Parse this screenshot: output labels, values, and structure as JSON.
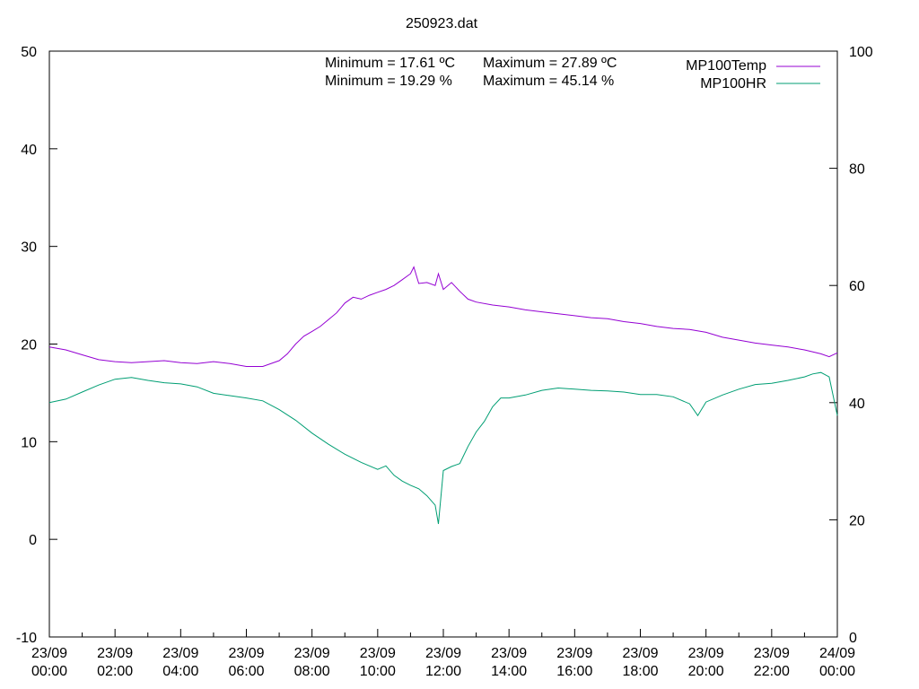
{
  "chart_data": {
    "type": "line",
    "title": "250923.dat",
    "xlabel": "",
    "ylabel": "",
    "y1lim": [
      -10,
      50
    ],
    "y2lim": [
      0,
      100
    ],
    "y1_ticks": [
      -10,
      0,
      10,
      20,
      30,
      40,
      50
    ],
    "y2_ticks": [
      0,
      20,
      40,
      60,
      80,
      100
    ],
    "x_range_hours": [
      0,
      24
    ],
    "x_ticks": [
      {
        "hour": 0,
        "date": "23/09",
        "time": "00:00"
      },
      {
        "hour": 2,
        "date": "23/09",
        "time": "02:00"
      },
      {
        "hour": 4,
        "date": "23/09",
        "time": "04:00"
      },
      {
        "hour": 6,
        "date": "23/09",
        "time": "06:00"
      },
      {
        "hour": 8,
        "date": "23/09",
        "time": "08:00"
      },
      {
        "hour": 10,
        "date": "23/09",
        "time": "10:00"
      },
      {
        "hour": 12,
        "date": "23/09",
        "time": "12:00"
      },
      {
        "hour": 14,
        "date": "23/09",
        "time": "14:00"
      },
      {
        "hour": 16,
        "date": "23/09",
        "time": "16:00"
      },
      {
        "hour": 18,
        "date": "23/09",
        "time": "18:00"
      },
      {
        "hour": 20,
        "date": "23/09",
        "time": "20:00"
      },
      {
        "hour": 22,
        "date": "23/09",
        "time": "22:00"
      },
      {
        "hour": 24,
        "date": "24/09",
        "time": "00:00"
      }
    ],
    "legend_position": "top-right",
    "annotations": {
      "temp_min": "Minimum = 17.61 ºC",
      "temp_max": "Maximum = 27.89 ºC",
      "hr_min": "Minimum = 19.29 %",
      "hr_max": "Maximum = 45.14 %"
    },
    "series": [
      {
        "name": "MP100Temp",
        "axis": "y1",
        "color": "#9400d3",
        "x": [
          0,
          0.5,
          1,
          1.5,
          2,
          2.5,
          3,
          3.5,
          4,
          4.5,
          5,
          5.5,
          6,
          6.5,
          7,
          7.25,
          7.5,
          7.75,
          8,
          8.25,
          8.5,
          8.75,
          9,
          9.25,
          9.5,
          9.75,
          10,
          10.25,
          10.5,
          10.75,
          11,
          11.1,
          11.25,
          11.5,
          11.75,
          11.85,
          12,
          12.25,
          12.5,
          12.75,
          13,
          13.5,
          14,
          14.5,
          15,
          15.5,
          16,
          16.5,
          17,
          17.5,
          18,
          18.5,
          19,
          19.5,
          20,
          20.5,
          21,
          21.5,
          22,
          22.5,
          23,
          23.5,
          23.75,
          24
        ],
        "y": [
          19.7,
          19.4,
          18.9,
          18.4,
          18.2,
          18.1,
          18.2,
          18.3,
          18.1,
          18.0,
          18.2,
          18.0,
          17.7,
          17.7,
          18.3,
          19.0,
          20.0,
          20.8,
          21.3,
          21.8,
          22.5,
          23.2,
          24.2,
          24.8,
          24.6,
          25.0,
          25.3,
          25.6,
          26.0,
          26.6,
          27.2,
          27.89,
          26.2,
          26.3,
          26.0,
          27.2,
          25.6,
          26.3,
          25.4,
          24.6,
          24.3,
          24.0,
          23.8,
          23.5,
          23.3,
          23.1,
          22.9,
          22.7,
          22.6,
          22.3,
          22.1,
          21.8,
          21.6,
          21.5,
          21.2,
          20.7,
          20.4,
          20.1,
          19.9,
          19.7,
          19.4,
          19.0,
          18.7,
          19.1
        ]
      },
      {
        "name": "MP100HR",
        "axis": "y2",
        "color": "#009e73",
        "x": [
          0,
          0.5,
          1,
          1.5,
          2,
          2.5,
          3,
          3.5,
          4,
          4.5,
          5,
          5.5,
          6,
          6.5,
          7,
          7.5,
          8,
          8.5,
          9,
          9.5,
          10,
          10.25,
          10.5,
          10.75,
          11,
          11.25,
          11.5,
          11.75,
          11.85,
          12,
          12.25,
          12.5,
          12.75,
          13,
          13.25,
          13.5,
          13.75,
          14,
          14.5,
          15,
          15.5,
          16,
          16.5,
          17,
          17.5,
          18,
          18.5,
          19,
          19.5,
          19.75,
          20,
          20.5,
          21,
          21.5,
          22,
          22.5,
          23,
          23.25,
          23.5,
          23.75,
          24
        ],
        "y": [
          40.0,
          40.6,
          41.8,
          43.0,
          44.0,
          44.3,
          43.8,
          43.4,
          43.2,
          42.7,
          41.6,
          41.2,
          40.8,
          40.3,
          38.8,
          37.0,
          34.8,
          32.9,
          31.2,
          29.8,
          28.6,
          29.2,
          27.6,
          26.6,
          25.9,
          25.3,
          24.1,
          22.5,
          19.29,
          28.4,
          29.1,
          29.6,
          32.5,
          35.0,
          36.8,
          39.3,
          40.8,
          40.8,
          41.3,
          42.1,
          42.5,
          42.3,
          42.1,
          42.0,
          41.8,
          41.4,
          41.4,
          41.0,
          39.8,
          37.8,
          40.1,
          41.3,
          42.3,
          43.1,
          43.3,
          43.8,
          44.4,
          44.9,
          45.14,
          44.4,
          37.8
        ]
      }
    ]
  }
}
